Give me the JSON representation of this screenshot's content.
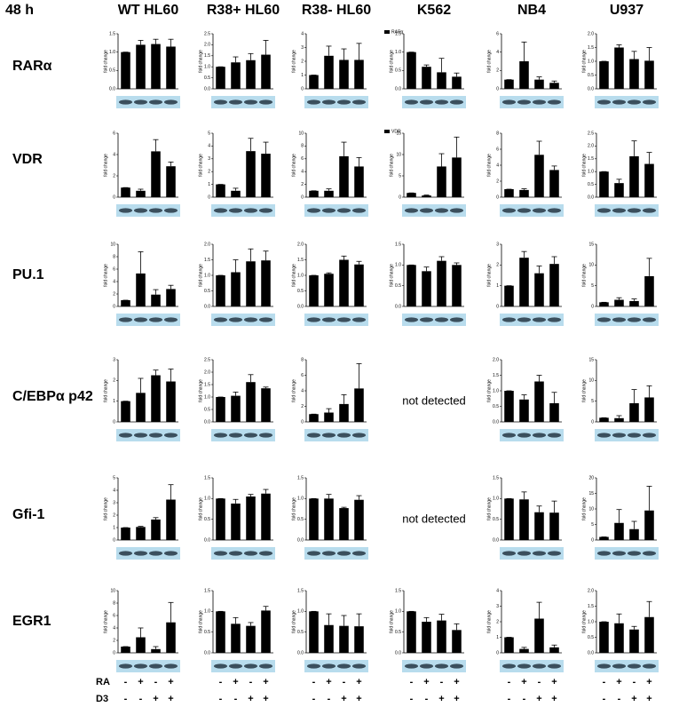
{
  "figure": {
    "time": "48 h",
    "columns": [
      "WT HL60",
      "R38+ HL60",
      "R38- HL60",
      "K562",
      "NB4",
      "U937"
    ],
    "rows": [
      "RARα",
      "VDR",
      "PU.1",
      "C/EBPα p42",
      "Gfi-1",
      "EGR1"
    ],
    "conditions": [
      {
        "label": "RA",
        "signs": [
          "-",
          "+",
          "-",
          "+"
        ]
      },
      {
        "label": "D3",
        "signs": [
          "-",
          "-",
          "+",
          "+"
        ]
      }
    ]
  },
  "chart_data": [
    {
      "type": "bar",
      "ylabel": "fold change",
      "ylim": [
        0,
        1.5
      ],
      "yticks": [
        {
          "value": 0,
          "label": "0.0"
        },
        0.5,
        {
          "value": 1,
          "label": "1.0"
        },
        1.5
      ],
      "series": [
        {
          "values": [
            1.0,
            1.2,
            1.22,
            1.15
          ],
          "errors": [
            0,
            0.12,
            0.13,
            0.2
          ]
        }
      ]
    },
    {
      "type": "bar",
      "ylabel": "fold change",
      "ylim": [
        0,
        2.5
      ],
      "yticks": [
        {
          "value": 0,
          "label": "0.0"
        },
        0.5,
        {
          "value": 1,
          "label": "1.0"
        },
        1.5,
        {
          "value": 2,
          "label": "2.0"
        },
        2.5
      ],
      "series": [
        {
          "values": [
            1.0,
            1.2,
            1.3,
            1.55
          ],
          "errors": [
            0,
            0.25,
            0.3,
            0.65
          ]
        }
      ]
    },
    {
      "type": "bar",
      "ylabel": "fold change",
      "ylim": [
        0,
        4
      ],
      "yticks": [
        0,
        1,
        2,
        3,
        4
      ],
      "series": [
        {
          "values": [
            1.0,
            2.4,
            2.1,
            2.1
          ],
          "errors": [
            0,
            0.7,
            0.8,
            1.2
          ]
        }
      ]
    },
    {
      "type": "bar",
      "ylabel": "fold change",
      "ylim": [
        0,
        1.5
      ],
      "yticks": [
        {
          "value": 0,
          "label": "0.0"
        },
        0.5,
        {
          "value": 1,
          "label": "1.0"
        },
        1.5
      ],
      "series": [
        {
          "name": "RARα",
          "values": [
            1.0,
            0.6,
            0.45,
            0.33
          ],
          "errors": [
            0,
            0.05,
            0.38,
            0.1
          ]
        }
      ]
    },
    {
      "type": "bar",
      "ylabel": "fold change",
      "ylim": [
        0,
        6
      ],
      "yticks": [
        0,
        2,
        4,
        6
      ],
      "series": [
        {
          "values": [
            1.0,
            3.0,
            1.0,
            0.65
          ],
          "errors": [
            0,
            2.1,
            0.3,
            0.2
          ]
        }
      ]
    },
    {
      "type": "bar",
      "ylabel": "fold change",
      "ylim": [
        0,
        2
      ],
      "yticks": [
        {
          "value": 0,
          "label": "0.0"
        },
        0.5,
        {
          "value": 1,
          "label": "1.0"
        },
        1.5,
        {
          "value": 2,
          "label": "2.0"
        }
      ],
      "series": [
        {
          "values": [
            1.0,
            1.5,
            1.08,
            1.02
          ],
          "errors": [
            0,
            0.1,
            0.28,
            0.48
          ]
        }
      ]
    },
    {
      "type": "bar",
      "ylabel": "fold change",
      "ylim": [
        0,
        6
      ],
      "yticks": [
        0,
        2,
        4,
        6
      ],
      "series": [
        {
          "values": [
            0.9,
            0.6,
            4.3,
            2.9
          ],
          "errors": [
            0,
            0.15,
            1.1,
            0.4
          ]
        }
      ]
    },
    {
      "type": "bar",
      "ylabel": "fold change",
      "ylim": [
        0,
        5
      ],
      "yticks": [
        0,
        1,
        2,
        3,
        4,
        5
      ],
      "series": [
        {
          "values": [
            1.0,
            0.5,
            3.6,
            3.4
          ],
          "errors": [
            0,
            0.2,
            1.0,
            0.9
          ]
        }
      ]
    },
    {
      "type": "bar",
      "ylabel": "fold change",
      "ylim": [
        0,
        10
      ],
      "yticks": [
        0,
        2,
        4,
        6,
        8,
        10
      ],
      "series": [
        {
          "values": [
            1.0,
            1.0,
            6.4,
            4.8
          ],
          "errors": [
            0,
            0.3,
            2.2,
            1.4
          ]
        }
      ]
    },
    {
      "type": "bar",
      "ylabel": "fold change",
      "ylim": [
        0,
        15
      ],
      "yticks": [
        0,
        5,
        10,
        15
      ],
      "series": [
        {
          "name": "VDR",
          "values": [
            1.0,
            0.4,
            7.2,
            9.3
          ],
          "errors": [
            0,
            0.1,
            3.0,
            4.8
          ]
        }
      ]
    },
    {
      "type": "bar",
      "ylabel": "fold change",
      "ylim": [
        0,
        8
      ],
      "yticks": [
        0,
        2,
        4,
        6,
        8
      ],
      "series": [
        {
          "values": [
            1.0,
            0.9,
            5.3,
            3.4
          ],
          "errors": [
            0,
            0.15,
            1.7,
            0.5
          ]
        }
      ]
    },
    {
      "type": "bar",
      "ylabel": "fold change",
      "ylim": [
        0,
        2.5
      ],
      "yticks": [
        {
          "value": 0,
          "label": "0.0"
        },
        0.5,
        {
          "value": 1,
          "label": "1.0"
        },
        1.5,
        {
          "value": 2,
          "label": "2.0"
        },
        2.5
      ],
      "series": [
        {
          "values": [
            1.0,
            0.55,
            1.6,
            1.3
          ],
          "errors": [
            0,
            0.15,
            0.6,
            0.45
          ]
        }
      ]
    },
    {
      "type": "bar",
      "ylabel": "fold change",
      "ylim": [
        0,
        10
      ],
      "yticks": [
        0,
        2,
        4,
        6,
        8,
        10
      ],
      "series": [
        {
          "values": [
            1.0,
            5.3,
            1.9,
            2.8
          ],
          "errors": [
            0,
            3.5,
            0.8,
            0.6
          ]
        }
      ]
    },
    {
      "type": "bar",
      "ylabel": "fold change",
      "ylim": [
        0,
        2
      ],
      "yticks": [
        {
          "value": 0,
          "label": "0.0"
        },
        0.5,
        {
          "value": 1,
          "label": "1.0"
        },
        1.5,
        {
          "value": 2,
          "label": "2.0"
        }
      ],
      "series": [
        {
          "values": [
            1.0,
            1.1,
            1.45,
            1.48
          ],
          "errors": [
            0,
            0.4,
            0.4,
            0.3
          ]
        }
      ]
    },
    {
      "type": "bar",
      "ylabel": "fold change",
      "ylim": [
        0,
        2
      ],
      "yticks": [
        {
          "value": 0,
          "label": "0.0"
        },
        0.5,
        {
          "value": 1,
          "label": "1.0"
        },
        1.5,
        {
          "value": 2,
          "label": "2.0"
        }
      ],
      "series": [
        {
          "values": [
            1.0,
            1.05,
            1.5,
            1.35
          ],
          "errors": [
            0,
            0.03,
            0.12,
            0.1
          ]
        }
      ]
    },
    {
      "type": "bar",
      "ylabel": "fold change",
      "ylim": [
        0,
        1.5
      ],
      "yticks": [
        {
          "value": 0,
          "label": "0.0"
        },
        0.5,
        {
          "value": 1,
          "label": "1.0"
        },
        1.5
      ],
      "series": [
        {
          "values": [
            1.0,
            0.85,
            1.1,
            1.0
          ],
          "errors": [
            0,
            0.1,
            0.1,
            0.05
          ]
        }
      ]
    },
    {
      "type": "bar",
      "ylabel": "fold change",
      "ylim": [
        0,
        3
      ],
      "yticks": [
        0,
        1,
        2,
        3
      ],
      "series": [
        {
          "values": [
            1.0,
            2.35,
            1.6,
            2.05
          ],
          "errors": [
            0,
            0.3,
            0.35,
            0.35
          ]
        }
      ]
    },
    {
      "type": "bar",
      "ylabel": "fold change",
      "ylim": [
        0,
        15
      ],
      "yticks": [
        0,
        5,
        10,
        15
      ],
      "series": [
        {
          "values": [
            1.0,
            1.6,
            1.3,
            7.3
          ],
          "errors": [
            0,
            0.5,
            0.5,
            4.3
          ]
        }
      ]
    },
    {
      "type": "bar",
      "ylabel": "fold change",
      "ylim": [
        0,
        3
      ],
      "yticks": [
        0,
        1,
        2,
        3
      ],
      "series": [
        {
          "values": [
            1.0,
            1.4,
            2.25,
            1.95
          ],
          "errors": [
            0,
            0.7,
            0.25,
            0.6
          ]
        }
      ]
    },
    {
      "type": "bar",
      "ylabel": "fold change",
      "ylim": [
        0,
        2.5
      ],
      "yticks": [
        {
          "value": 0,
          "label": "0.0"
        },
        0.5,
        {
          "value": 1,
          "label": "1.0"
        },
        1.5,
        {
          "value": 2,
          "label": "2.0"
        },
        2.5
      ],
      "series": [
        {
          "values": [
            1.0,
            1.05,
            1.6,
            1.35
          ],
          "errors": [
            0,
            0.15,
            0.3,
            0.05
          ]
        }
      ]
    },
    {
      "type": "bar",
      "ylabel": "fold change",
      "ylim": [
        0,
        8
      ],
      "yticks": [
        0,
        2,
        4,
        6,
        8
      ],
      "series": [
        {
          "values": [
            1.0,
            1.2,
            2.3,
            4.3
          ],
          "errors": [
            0,
            0.5,
            1.2,
            3.2
          ]
        }
      ]
    },
    {
      "type": "note",
      "text": "not detected"
    },
    {
      "type": "bar",
      "ylabel": "fold change",
      "ylim": [
        0,
        2
      ],
      "yticks": [
        {
          "value": 0,
          "label": "0.0"
        },
        0.5,
        {
          "value": 1,
          "label": "1.0"
        },
        1.5,
        {
          "value": 2,
          "label": "2.0"
        }
      ],
      "series": [
        {
          "values": [
            1.0,
            0.72,
            1.3,
            0.6
          ],
          "errors": [
            0,
            0.15,
            0.2,
            0.35
          ]
        }
      ]
    },
    {
      "type": "bar",
      "ylabel": "fold change",
      "ylim": [
        0,
        15
      ],
      "yticks": [
        0,
        5,
        10,
        15
      ],
      "series": [
        {
          "values": [
            1.0,
            0.9,
            4.5,
            5.9
          ],
          "errors": [
            0,
            0.6,
            3.3,
            2.8
          ]
        }
      ]
    },
    {
      "type": "bar",
      "ylabel": "fold change",
      "ylim": [
        0,
        5
      ],
      "yticks": [
        0,
        1,
        2,
        3,
        4,
        5
      ],
      "series": [
        {
          "values": [
            1.0,
            1.05,
            1.65,
            3.25
          ],
          "errors": [
            0,
            0.05,
            0.15,
            1.2
          ]
        }
      ]
    },
    {
      "type": "bar",
      "ylabel": "fold change",
      "ylim": [
        0,
        1.5
      ],
      "yticks": [
        {
          "value": 0,
          "label": "0.0"
        },
        0.5,
        {
          "value": 1,
          "label": "1.0"
        },
        1.5
      ],
      "series": [
        {
          "values": [
            1.0,
            0.88,
            1.05,
            1.12
          ],
          "errors": [
            0,
            0.1,
            0.05,
            0.1
          ]
        }
      ]
    },
    {
      "type": "bar",
      "ylabel": "fold change",
      "ylim": [
        0,
        1.5
      ],
      "yticks": [
        {
          "value": 0,
          "label": "0.0"
        },
        0.5,
        {
          "value": 1,
          "label": "1.0"
        },
        1.5
      ],
      "series": [
        {
          "values": [
            1.0,
            1.0,
            0.77,
            0.97
          ],
          "errors": [
            0,
            0.1,
            0.02,
            0.1
          ]
        }
      ]
    },
    {
      "type": "note",
      "text": "not detected"
    },
    {
      "type": "bar",
      "ylabel": "fold change",
      "ylim": [
        0,
        1.5
      ],
      "yticks": [
        {
          "value": 0,
          "label": "0.0"
        },
        0.5,
        {
          "value": 1,
          "label": "1.0"
        },
        1.5
      ],
      "series": [
        {
          "values": [
            1.0,
            0.98,
            0.67,
            0.66
          ],
          "errors": [
            0,
            0.18,
            0.15,
            0.28
          ]
        }
      ]
    },
    {
      "type": "bar",
      "ylabel": "fold change",
      "ylim": [
        0,
        20
      ],
      "yticks": [
        0,
        5,
        10,
        15,
        20
      ],
      "series": [
        {
          "values": [
            1.0,
            5.5,
            3.5,
            9.5
          ],
          "errors": [
            0,
            4.3,
            2.5,
            7.8
          ]
        }
      ]
    },
    {
      "type": "bar",
      "ylabel": "fold change",
      "ylim": [
        0,
        10
      ],
      "yticks": [
        0,
        2,
        4,
        6,
        8,
        10
      ],
      "series": [
        {
          "values": [
            1.0,
            2.5,
            0.6,
            4.9
          ],
          "errors": [
            0,
            1.5,
            0.4,
            3.2
          ]
        }
      ]
    },
    {
      "type": "bar",
      "ylabel": "fold change",
      "ylim": [
        0,
        1.5
      ],
      "yticks": [
        {
          "value": 0,
          "label": "0.0"
        },
        0.5,
        {
          "value": 1,
          "label": "1.0"
        },
        1.5
      ],
      "series": [
        {
          "values": [
            1.0,
            0.7,
            0.65,
            1.02
          ],
          "errors": [
            0,
            0.15,
            0.08,
            0.1
          ]
        }
      ]
    },
    {
      "type": "bar",
      "ylabel": "fold change",
      "ylim": [
        0,
        1.5
      ],
      "yticks": [
        {
          "value": 0,
          "label": "0.0"
        },
        0.5,
        {
          "value": 1,
          "label": "1.0"
        },
        1.5
      ],
      "series": [
        {
          "values": [
            1.0,
            0.67,
            0.65,
            0.64
          ],
          "errors": [
            0,
            0.27,
            0.25,
            0.3
          ]
        }
      ]
    },
    {
      "type": "bar",
      "ylabel": "fold change",
      "ylim": [
        0,
        1.5
      ],
      "yticks": [
        {
          "value": 0,
          "label": "0.0"
        },
        0.5,
        {
          "value": 1,
          "label": "1.0"
        },
        1.5
      ],
      "series": [
        {
          "values": [
            1.0,
            0.75,
            0.78,
            0.55
          ],
          "errors": [
            0,
            0.1,
            0.15,
            0.15
          ]
        }
      ]
    },
    {
      "type": "bar",
      "ylabel": "fold change",
      "ylim": [
        0,
        4
      ],
      "yticks": [
        0,
        1,
        2,
        3,
        4
      ],
      "series": [
        {
          "values": [
            1.0,
            0.25,
            2.2,
            0.35
          ],
          "errors": [
            0,
            0.1,
            1.05,
            0.15
          ]
        }
      ]
    },
    {
      "type": "bar",
      "ylabel": "fold change",
      "ylim": [
        0,
        2
      ],
      "yticks": [
        {
          "value": 0,
          "label": "0.0"
        },
        0.5,
        {
          "value": 1,
          "label": "1.0"
        },
        1.5,
        {
          "value": 2,
          "label": "2.0"
        }
      ],
      "series": [
        {
          "values": [
            1.0,
            0.95,
            0.75,
            1.15
          ],
          "errors": [
            0,
            0.3,
            0.1,
            0.5
          ]
        }
      ]
    }
  ]
}
